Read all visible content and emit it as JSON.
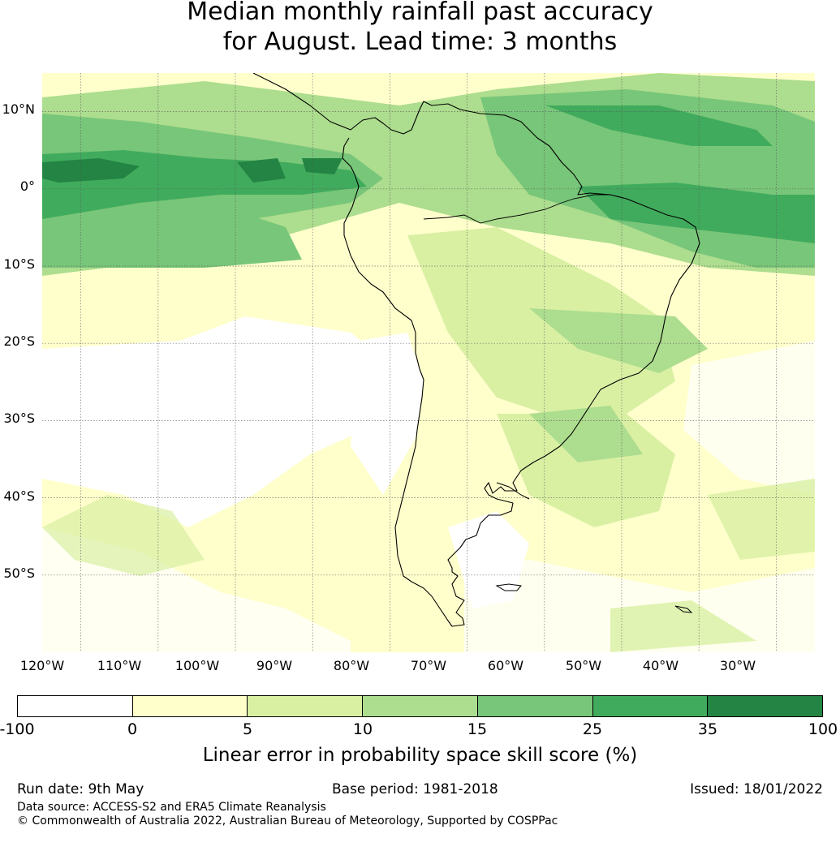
{
  "title": {
    "line1": "Median monthly rainfall past accuracy",
    "line2": "for August. Lead time: 3 months"
  },
  "map": {
    "lat_labels": [
      "10°N",
      "0°",
      "10°S",
      "20°S",
      "30°S",
      "40°S",
      "50°S"
    ],
    "lon_labels": [
      "120°W",
      "110°W",
      "100°W",
      "90°W",
      "80°W",
      "70°W",
      "60°W",
      "50°W",
      "40°W",
      "30°W"
    ],
    "extent": {
      "lon_min": -125,
      "lon_max": -25,
      "lat_min": -60,
      "lat_max": 15
    }
  },
  "colorbar": {
    "boundaries": [
      "-100",
      "0",
      "5",
      "10",
      "15",
      "25",
      "35",
      "100"
    ],
    "colors": [
      "#ffffff",
      "#ffffcc",
      "#d9f0a3",
      "#addd8e",
      "#78c679",
      "#41ab5d",
      "#238443"
    ],
    "label": "Linear error in probability space skill score (%)"
  },
  "footer": {
    "run_date": "Run date: 9th May",
    "base_period": "Base period: 1981-2018",
    "issued": "Issued: 18/01/2022",
    "data_source": "Data source: ACCESS-S2 and ERA5 Climate Reanalysis",
    "copyright": "© Commonwealth of Australia 2022, Australian Bureau of Meteorology, Supported by COSPPac"
  }
}
